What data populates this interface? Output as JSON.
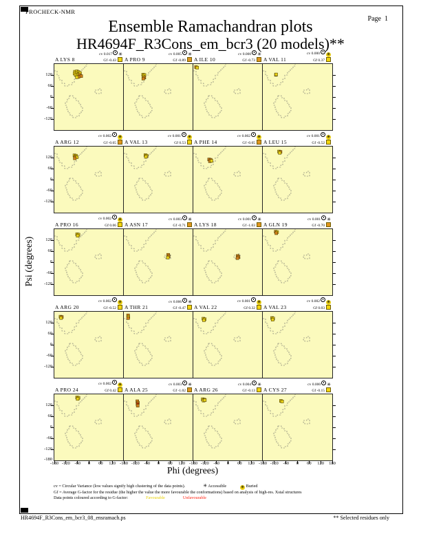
{
  "page": {
    "app": "PROCHECK-NMR",
    "page_label": "Page  1",
    "title": "Ensemble Ramachandran plots",
    "subtitle": "HR4694F_R3Cons_em_bcr3 (20 models)**",
    "footer_left": "HR4694F_R3Cons_em_bcr3_08_ensramach.ps",
    "footer_right": "** Selected residues only"
  },
  "axes": {
    "xlabel": "Phi (degrees)",
    "ylabel": "Psi (degrees)",
    "x_ticks": [
      -180,
      -120,
      -60,
      0,
      60,
      120,
      180
    ],
    "y_ticks": [
      120,
      60,
      0,
      -60,
      -120
    ],
    "y_bottom_tick": -180,
    "phi_range": [
      -180,
      180
    ],
    "psi_range": [
      -180,
      180
    ]
  },
  "legend": {
    "line1": "cv = Circular Variance (low values signify high clustering of the data points).",
    "accessible_label": "Accessible",
    "buried_label": "Buried",
    "line2": "Gf = Average G-factor for the residue (the higher the value the more favourable the conformations)  based on analysis of high-res. Xstal structures",
    "line3": "Data points coloured according to G-factor:",
    "favourable_label": "Favourable",
    "unfavourable_label": "Unfavourable"
  },
  "colors": {
    "plot_background": "#fbfabd",
    "favourable_point": "#e6cf17",
    "mid_point": "#cf7f1d",
    "unfavourable_point": "#bf3005",
    "buried_symbol": "#f0d414",
    "gf_square_yellow": "#f2d50f",
    "gf_square_orange": "#e0951f"
  },
  "stat_labels": {
    "cv": "cv",
    "gf": "Gf"
  },
  "chart_data": {
    "type": "scatter",
    "title": "Ensemble Ramachandran plots",
    "xlabel": "Phi (degrees)",
    "ylabel": "Psi (degrees)",
    "xlim": [
      -180,
      180
    ],
    "ylim": [
      -180,
      180
    ],
    "grid": false,
    "subplots": [
      {
        "residue": "A LYS 8",
        "cv": "0.017",
        "gf": "-0.43",
        "buried": false,
        "points": [
          [
            -73,
            138,
            "y"
          ],
          [
            -63,
            140,
            "y"
          ],
          [
            -55,
            136,
            "y"
          ],
          [
            -75,
            128,
            "y"
          ],
          [
            -65,
            130,
            "y"
          ],
          [
            -55,
            126,
            "y"
          ],
          [
            -47,
            130,
            "y"
          ],
          [
            -69,
            120,
            "y"
          ],
          [
            -59,
            118,
            "y"
          ],
          [
            -49,
            120,
            "o"
          ],
          [
            -41,
            114,
            "o"
          ],
          [
            -55,
            110,
            "o"
          ],
          [
            -63,
            108,
            "y"
          ]
        ]
      },
      {
        "residue": "A PRO 9",
        "cv": "0.005",
        "gf": "-0.89",
        "buried": false,
        "points": [
          [
            -80,
            122,
            "y"
          ],
          [
            -73,
            120,
            "y"
          ],
          [
            -78,
            112,
            "y"
          ],
          [
            -74,
            106,
            "o"
          ],
          [
            -79,
            100,
            "o"
          ]
        ]
      },
      {
        "residue": "A ILE 10",
        "cv": "0.000",
        "gf": "-0.73",
        "buried": false,
        "points": [
          [
            -166,
            163,
            "o"
          ],
          [
            -160,
            160,
            "y"
          ]
        ]
      },
      {
        "residue": "A VAL 11",
        "cv": "0.000",
        "gf": "0.37",
        "buried": true,
        "points": [
          [
            -112,
            121,
            "o"
          ],
          [
            -111,
            123,
            "y"
          ]
        ]
      },
      {
        "residue": "A ARG 12",
        "cv": "0.002",
        "gf": "-0.65",
        "buried": true,
        "points": [
          [
            -76,
            132,
            "y"
          ],
          [
            -68,
            130,
            "y"
          ],
          [
            -72,
            124,
            "o"
          ],
          [
            -64,
            122,
            "y"
          ],
          [
            -74,
            116,
            "o"
          ]
        ]
      },
      {
        "residue": "A VAL 13",
        "cv": "0.001",
        "gf": "0.53",
        "buried": true,
        "points": [
          [
            -68,
            133,
            "y"
          ],
          [
            -62,
            130,
            "y"
          ],
          [
            -66,
            124,
            "y"
          ]
        ]
      },
      {
        "residue": "A PHE 14",
        "cv": "0.002",
        "gf": "-0.65",
        "buried": true,
        "points": [
          [
            -98,
            110,
            "o"
          ],
          [
            -90,
            108,
            "o"
          ],
          [
            -94,
            100,
            "o"
          ],
          [
            -86,
            102,
            "y"
          ]
        ]
      },
      {
        "residue": "A LEU 15",
        "cv": "0.001",
        "gf": "-0.52",
        "buried": true,
        "points": [
          [
            -96,
            153,
            "y"
          ],
          [
            -88,
            151,
            "o"
          ],
          [
            -92,
            146,
            "y"
          ]
        ]
      },
      {
        "residue": "A PRO 16",
        "cv": "0.002",
        "gf": "0.06",
        "buried": true,
        "points": [
          [
            -62,
            152,
            "y"
          ],
          [
            -55,
            150,
            "y"
          ],
          [
            -59,
            144,
            "y"
          ]
        ]
      },
      {
        "residue": "A ASN 17",
        "cv": "0.003",
        "gf": "-0.71",
        "buried": false,
        "points": [
          [
            50,
            40,
            "o"
          ],
          [
            52,
            32,
            "o"
          ],
          [
            48,
            25,
            "y"
          ]
        ]
      },
      {
        "residue": "A LYS 18",
        "cv": "0.001",
        "gf": "-1.03",
        "buried": false,
        "points": [
          [
            50,
            34,
            "o"
          ],
          [
            54,
            28,
            "o"
          ],
          [
            49,
            22,
            "o"
          ]
        ]
      },
      {
        "residue": "A GLN 19",
        "cv": "0.001",
        "gf": "-0.70",
        "buried": false,
        "points": [
          [
            -113,
            166,
            "o"
          ],
          [
            -106,
            164,
            "y"
          ],
          [
            -110,
            158,
            "o"
          ]
        ]
      },
      {
        "residue": "A ARG 20",
        "cv": "0.002",
        "gf": "-0.52",
        "buried": true,
        "points": [
          [
            -148,
            153,
            "y"
          ],
          [
            -141,
            151,
            "o"
          ],
          [
            -145,
            146,
            "y"
          ]
        ]
      },
      {
        "residue": "A THR 21",
        "cv": "0.006",
        "gf": "-0.47",
        "buried": false,
        "points": [
          [
            -158,
            160,
            "o"
          ],
          [
            -157,
            152,
            "y"
          ],
          [
            -158,
            145,
            "o"
          ]
        ]
      },
      {
        "residue": "A VAL 22",
        "cv": "0.001",
        "gf": "0.32",
        "buried": true,
        "points": [
          [
            -128,
            142,
            "y"
          ],
          [
            -121,
            139,
            "y"
          ],
          [
            -125,
            134,
            "y"
          ]
        ]
      },
      {
        "residue": "A VAL 23",
        "cv": "0.002",
        "gf": "0.03",
        "buried": true,
        "points": [
          [
            -132,
            146,
            "y"
          ],
          [
            -126,
            143,
            "y"
          ],
          [
            -129,
            137,
            "y"
          ]
        ]
      },
      {
        "residue": "A PRO 24",
        "cv": "0.002",
        "gf": "0.42",
        "buried": true,
        "points": [
          [
            -62,
            163,
            "y"
          ],
          [
            -55,
            161,
            "y"
          ],
          [
            -59,
            155,
            "y"
          ]
        ]
      },
      {
        "residue": "A ALA 25",
        "cv": "0.003",
        "gf": "-1.02",
        "buried": false,
        "points": [
          [
            -110,
            142,
            "o"
          ],
          [
            -107,
            134,
            "o"
          ],
          [
            -109,
            126,
            "r"
          ],
          [
            -108,
            118,
            "o"
          ]
        ]
      },
      {
        "residue": "A ARG 26",
        "cv": "0.004",
        "gf": "-0.13",
        "buried": false,
        "points": [
          [
            -131,
            153,
            "y"
          ],
          [
            -123,
            151,
            "y"
          ],
          [
            -127,
            146,
            "y"
          ],
          [
            -120,
            148,
            "y"
          ]
        ]
      },
      {
        "residue": "A CYS 27",
        "cv": "0.000",
        "gf": "-0.15",
        "buried": false,
        "points": [
          [
            -86,
            144,
            "y"
          ],
          [
            -80,
            141,
            "y"
          ]
        ]
      }
    ]
  }
}
